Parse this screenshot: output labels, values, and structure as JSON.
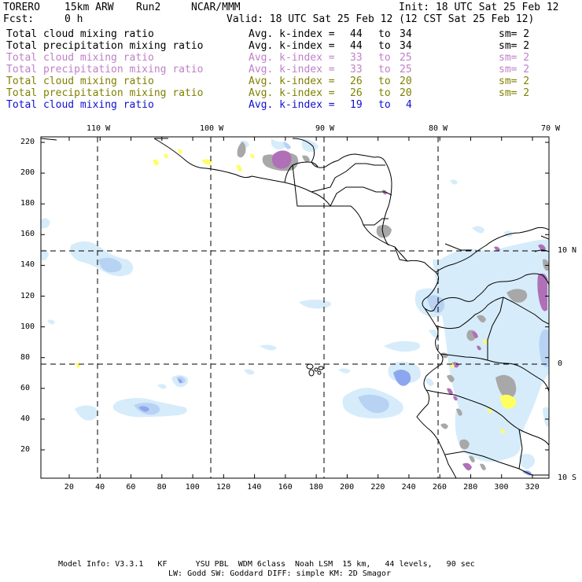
{
  "header": {
    "model": "TORERO",
    "resolution": "15km ARW",
    "run": "Run2",
    "org": "NCAR/MMM",
    "init": "Init: 18 UTC Sat 25 Feb 12",
    "fcst_label": "Fcst:",
    "fcst_value": "0 h",
    "valid": "Valid: 18 UTC Sat 25 Feb 12 (12 CST Sat 25 Feb 12)"
  },
  "legend": [
    {
      "field": "Total cloud mixing ratio",
      "index_label": "Avg. k-index =",
      "from": "44",
      "to_word": "to",
      "to": "34",
      "sm": "sm= 2",
      "color": "#000000"
    },
    {
      "field": "Total precipitation mixing ratio",
      "index_label": "Avg. k-index =",
      "from": "44",
      "to_word": "to",
      "to": "34",
      "sm": "sm= 2",
      "color": "#000000"
    },
    {
      "field": "Total cloud mixing ratio",
      "index_label": "Avg. k-index =",
      "from": "33",
      "to_word": "to",
      "to": "25",
      "sm": "sm= 2",
      "color": "#c080c8"
    },
    {
      "field": "Total precipitation mixing ratio",
      "index_label": "Avg. k-index =",
      "from": "33",
      "to_word": "to",
      "to": "25",
      "sm": "sm= 2",
      "color": "#c080c8"
    },
    {
      "field": "Total cloud mixing ratio",
      "index_label": "Avg. k-index =",
      "from": "26",
      "to_word": "to",
      "to": "20",
      "sm": "sm= 2",
      "color": "#808000"
    },
    {
      "field": "Total precipitation mixing ratio",
      "index_label": "Avg. k-index =",
      "from": "26",
      "to_word": "to",
      "to": "20",
      "sm": "sm= 2",
      "color": "#808000"
    },
    {
      "field": "Total cloud mixing ratio",
      "index_label": "Avg. k-index =",
      "from": "19",
      "to_word": "to",
      "to": "4",
      "sm": "",
      "color": "#1010d0"
    }
  ],
  "map": {
    "lon_labels": [
      "110 W",
      "100 W",
      "90 W",
      "80 W",
      "70 W"
    ],
    "lat_labels": [
      "10 N",
      "0",
      "10 S"
    ],
    "y_ticks": [
      "220",
      "200",
      "180",
      "160",
      "140",
      "120",
      "100",
      "80",
      "60",
      "40",
      "20"
    ],
    "x_ticks": [
      "20",
      "40",
      "60",
      "80",
      "100",
      "120",
      "140",
      "160",
      "180",
      "200",
      "220",
      "240",
      "260",
      "280",
      "300",
      "320"
    ],
    "colors": {
      "light_blue": "#d6ecfa",
      "mid_blue": "#a9c6f2",
      "blue": "#7f9ff0",
      "gray": "#a8a8a8",
      "purple": "#b070b8",
      "yellow": "#ffff60",
      "coast": "#000000"
    }
  },
  "footer": {
    "line1": "Model Info: V3.3.1   KF      YSU PBL  WDM 6class  Noah LSM  15 km,   44 levels,   90 sec",
    "line2": "LW: Godd SW: Goddard DIFF: simple KM: 2D Smagor"
  }
}
